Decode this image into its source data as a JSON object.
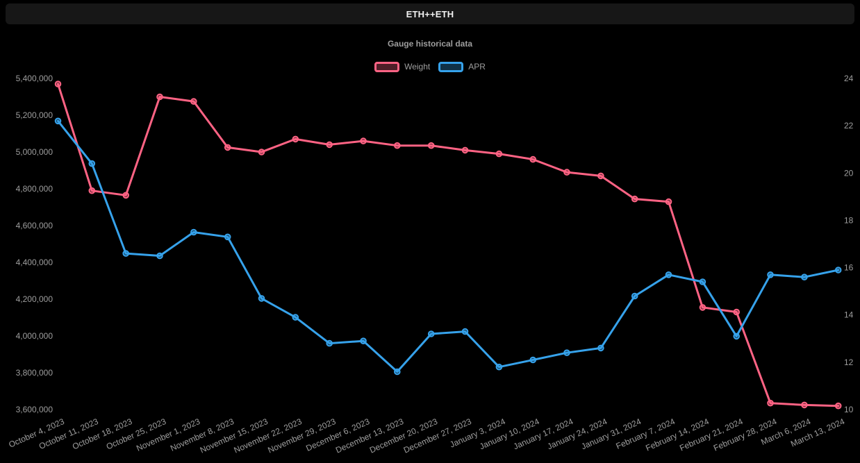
{
  "window": {
    "title": "ETH++ETH"
  },
  "colors": {
    "background": "#000000",
    "titlebar_bg": "#171717",
    "titlebar_text": "#f2f2f2",
    "muted_text": "#9e9e9e",
    "weight_series": "#ff6384",
    "apr_series": "#36a2eb"
  },
  "chart_data": {
    "type": "line",
    "title": "Gauge historical data",
    "grid": false,
    "legend_position": "top",
    "x": [
      "October 4, 2023",
      "October 11, 2023",
      "October 18, 2023",
      "October 25, 2023",
      "November 1, 2023",
      "November 8, 2023",
      "November 15, 2023",
      "November 22, 2023",
      "November 29, 2023",
      "December 6, 2023",
      "December 13, 2023",
      "December 20, 2023",
      "December 27, 2023",
      "January 3, 2024",
      "January 10, 2024",
      "January 17, 2024",
      "January 24, 2024",
      "January 31, 2024",
      "February 7, 2024",
      "February 14, 2024",
      "February 21, 2024",
      "February 28, 2024",
      "March 6, 2024",
      "March 13, 2024"
    ],
    "series": [
      {
        "name": "Weight",
        "axis": "left",
        "color": "#ff6384",
        "values": [
          5370000,
          4790000,
          4765000,
          5300000,
          5275000,
          5025000,
          5000000,
          5070000,
          5040000,
          5060000,
          5035000,
          5035000,
          5010000,
          4990000,
          4960000,
          4890000,
          4870000,
          4745000,
          4730000,
          4155000,
          4130000,
          3635000,
          3625000,
          3620000
        ]
      },
      {
        "name": "APR",
        "axis": "right",
        "color": "#36a2eb",
        "values": [
          22.2,
          20.4,
          16.6,
          16.5,
          17.5,
          17.3,
          14.7,
          13.9,
          12.8,
          12.9,
          11.6,
          13.2,
          13.3,
          11.8,
          12.1,
          12.4,
          12.6,
          14.8,
          15.7,
          15.4,
          13.1,
          15.7,
          15.6,
          15.9
        ]
      }
    ],
    "left_axis": {
      "min": 3600000,
      "max": 5400000,
      "tick_step": 200000,
      "tick_labels": [
        "5,400,000",
        "5,200,000",
        "5,000,000",
        "4,800,000",
        "4,600,000",
        "4,400,000",
        "4,200,000",
        "4,000,000",
        "3,800,000",
        "3,600,000"
      ]
    },
    "right_axis": {
      "min": 10,
      "max": 24,
      "tick_step": 2,
      "tick_labels": [
        "24",
        "22",
        "20",
        "18",
        "16",
        "14",
        "12",
        "10"
      ]
    }
  }
}
